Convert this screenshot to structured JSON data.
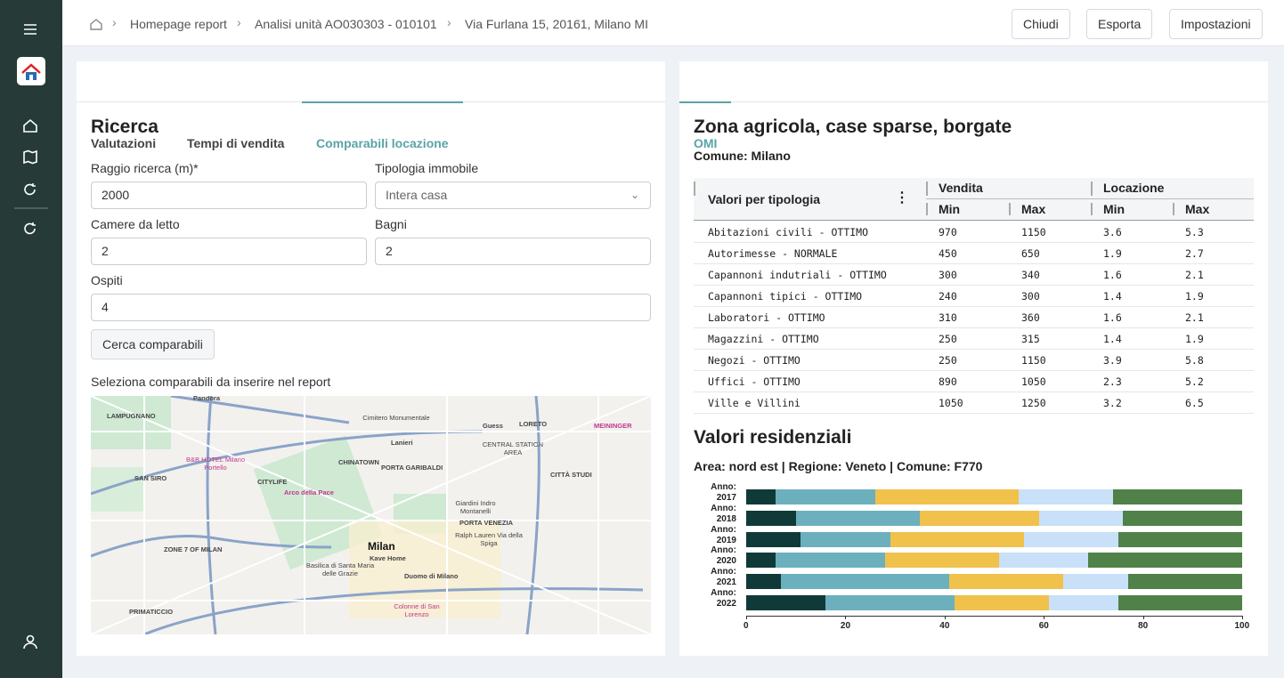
{
  "breadcrumb": [
    "Homepage report",
    "Analisi unità AO030303 - 010101",
    "Via Furlana 15, 20161, Milano MI"
  ],
  "actions": [
    "Chiudi",
    "Esporta",
    "Impostazioni"
  ],
  "left_tabs": [
    "Valutazioni",
    "Tempi di vendita",
    "Comparabili locazione"
  ],
  "search": {
    "title": "Ricerca",
    "fields": [
      {
        "label": "Raggio ricerca (m)*",
        "value": "2000"
      },
      {
        "label": "Tipologia immobile",
        "value": "Intera casa"
      },
      {
        "label": "Camere da letto",
        "value": "2"
      },
      {
        "label": "Bagni",
        "value": "2"
      },
      {
        "label": "Ospiti",
        "value": "4"
      }
    ],
    "button": "Cerca comparabili",
    "map_caption": "Seleziona comparabili da inserire nel report"
  },
  "map": {
    "labels": [
      "Pandora",
      "LAMPUGNANO",
      "Cimitero Monumentale",
      "Guess",
      "LORETO",
      "MEININGER",
      "Lanieri",
      "CENTRAL STATION AREA",
      "B&B HOTEL Milano Portello",
      "CHINATOWN",
      "PORTA GARIBALDI",
      "CITYLIFE",
      "SAN SIRO",
      "Arco della Pace",
      "CITTÀ STUDI",
      "Giardini Indro Montanelli",
      "PORTA VENEZIA",
      "Milan",
      "Kave Home",
      "Ralph Lauren Via della Spiga",
      "ZONE 7 OF MILAN",
      "Basilica di Santa Maria delle Grazie",
      "Duomo di Milano",
      "Colonne di San Lorenzo",
      "PRIMATICCIO"
    ]
  },
  "right_tabs": [
    "OMI"
  ],
  "omi": {
    "title": "Zona agricola, case sparse, borgate",
    "subtitle": "Comune: Milano",
    "table": {
      "header": "Valori per tipologia",
      "groups": [
        "Vendita",
        "Locazione"
      ],
      "subheaders": [
        "Min",
        "Max",
        "Min",
        "Max"
      ],
      "rows": [
        [
          "Abitazioni civili - OTTIMO",
          970,
          1150,
          3.6,
          5.3
        ],
        [
          "Autorimesse - NORMALE",
          450,
          650,
          1.9,
          2.7
        ],
        [
          "Capannoni indutriali - OTTIMO",
          300,
          340,
          1.6,
          2.1
        ],
        [
          "Capannoni tipici - OTTIMO",
          240,
          300,
          1.4,
          1.9
        ],
        [
          "Laboratori - OTTIMO",
          310,
          360,
          1.6,
          2.1
        ],
        [
          "Magazzini - OTTIMO",
          250,
          315,
          1.4,
          1.9
        ],
        [
          "Negozi - OTTIMO",
          250,
          1150,
          3.9,
          5.8
        ],
        [
          "Uffici - OTTIMO",
          890,
          1050,
          2.3,
          5.2
        ],
        [
          "Ville e Villini",
          1050,
          1250,
          3.2,
          6.5
        ]
      ]
    }
  },
  "chart_data": {
    "type": "bar",
    "orientation": "horizontal",
    "stacked": true,
    "title": "Valori residenziali",
    "subtitle": "Area: nord est | Regione: Veneto | Comune: F770",
    "categories": [
      "Anno: 2017",
      "Anno: 2018",
      "Anno: 2019",
      "Anno: 2020",
      "Anno: 2021",
      "Anno: 2022"
    ],
    "series": [
      {
        "color": "#0f3a38",
        "values": [
          6,
          10,
          11,
          6,
          7,
          16
        ]
      },
      {
        "color": "#6cb0bd",
        "values": [
          20,
          25,
          18,
          22,
          34,
          26
        ]
      },
      {
        "color": "#f0c14b",
        "values": [
          29,
          24,
          27,
          23,
          23,
          19
        ]
      },
      {
        "color": "#c8e0f8",
        "values": [
          19,
          17,
          19,
          18,
          13,
          14
        ]
      },
      {
        "color": "#4f8148",
        "values": [
          26,
          24,
          25,
          31,
          23,
          25
        ]
      }
    ],
    "xlim": [
      0,
      100
    ],
    "xticks": [
      0,
      20,
      40,
      60,
      80,
      100
    ]
  }
}
